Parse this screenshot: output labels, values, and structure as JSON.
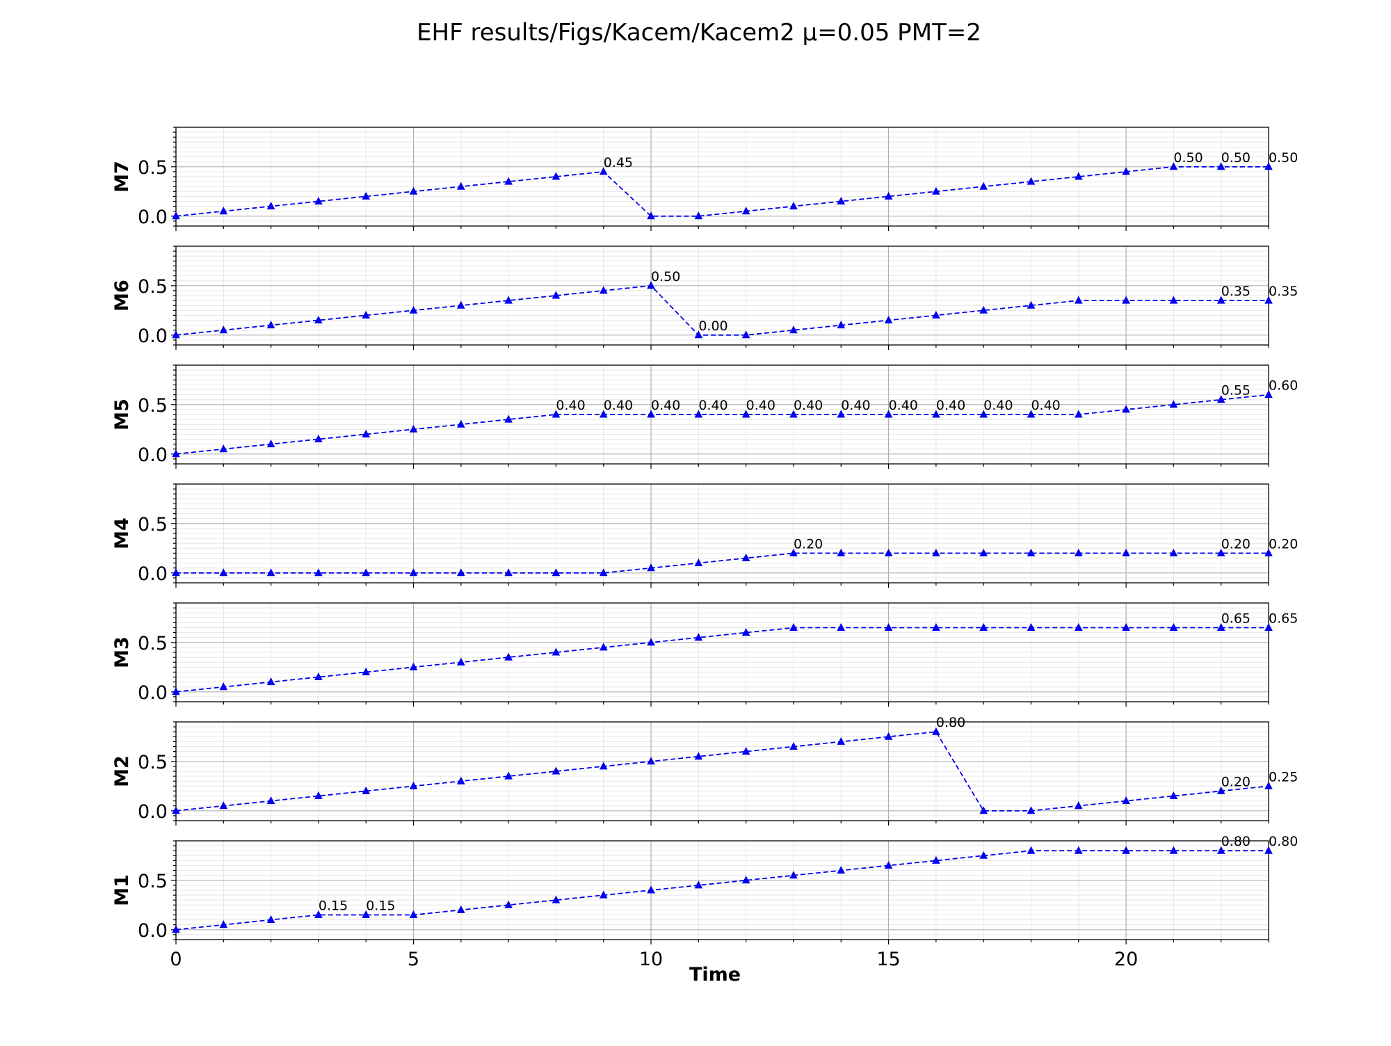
{
  "chart_data": {
    "type": "line",
    "title": "EHF results/Figs/Kacem/Kacem2 μ=0.05 PMT=2",
    "xlabel": "Time",
    "xlim": [
      0,
      23
    ],
    "ylim": [
      -0.1,
      0.9
    ],
    "x_ticks": [
      0,
      5,
      10,
      15,
      20
    ],
    "y_ticks": [
      0.0,
      0.5
    ],
    "grid": true,
    "line_style": "dashed",
    "marker": "triangle",
    "color": "#0000ee",
    "x": [
      0,
      1,
      2,
      3,
      4,
      5,
      6,
      7,
      8,
      9,
      10,
      11,
      12,
      13,
      14,
      15,
      16,
      17,
      18,
      19,
      20,
      21,
      22,
      23
    ],
    "series": [
      {
        "name": "M7",
        "values": [
          0,
          0.05,
          0.1,
          0.15,
          0.2,
          0.25,
          0.3,
          0.35,
          0.4,
          0.45,
          0,
          0,
          0.05,
          0.1,
          0.15,
          0.2,
          0.25,
          0.3,
          0.35,
          0.4,
          0.45,
          0.5,
          0.5,
          0.5
        ],
        "annotations": [
          {
            "x": 9,
            "y": 0.45,
            "text": "0.45"
          },
          {
            "x": 21,
            "y": 0.5,
            "text": "0.50"
          },
          {
            "x": 22,
            "y": 0.5,
            "text": "0.50"
          },
          {
            "x": 23,
            "y": 0.5,
            "text": "0.50"
          }
        ]
      },
      {
        "name": "M6",
        "values": [
          0,
          0.05,
          0.1,
          0.15,
          0.2,
          0.25,
          0.3,
          0.35,
          0.4,
          0.45,
          0.5,
          0,
          0,
          0.05,
          0.1,
          0.15,
          0.2,
          0.25,
          0.3,
          0.35,
          0.35,
          0.35,
          0.35,
          0.35
        ],
        "annotations": [
          {
            "x": 10,
            "y": 0.5,
            "text": "0.50"
          },
          {
            "x": 11,
            "y": 0,
            "text": "0.00"
          },
          {
            "x": 22,
            "y": 0.35,
            "text": "0.35"
          },
          {
            "x": 23,
            "y": 0.35,
            "text": "0.35"
          }
        ]
      },
      {
        "name": "M5",
        "values": [
          0,
          0.05,
          0.1,
          0.15,
          0.2,
          0.25,
          0.3,
          0.35,
          0.4,
          0.4,
          0.4,
          0.4,
          0.4,
          0.4,
          0.4,
          0.4,
          0.4,
          0.4,
          0.4,
          0.4,
          0.45,
          0.5,
          0.55,
          0.6
        ],
        "annotations": [
          {
            "x": 8,
            "y": 0.4,
            "text": "0.40"
          },
          {
            "x": 9,
            "y": 0.4,
            "text": "0.40"
          },
          {
            "x": 10,
            "y": 0.4,
            "text": "0.40"
          },
          {
            "x": 11,
            "y": 0.4,
            "text": "0.40"
          },
          {
            "x": 12,
            "y": 0.4,
            "text": "0.40"
          },
          {
            "x": 13,
            "y": 0.4,
            "text": "0.40"
          },
          {
            "x": 14,
            "y": 0.4,
            "text": "0.40"
          },
          {
            "x": 15,
            "y": 0.4,
            "text": "0.40"
          },
          {
            "x": 16,
            "y": 0.4,
            "text": "0.40"
          },
          {
            "x": 17,
            "y": 0.4,
            "text": "0.40"
          },
          {
            "x": 18,
            "y": 0.4,
            "text": "0.40"
          },
          {
            "x": 22,
            "y": 0.55,
            "text": "0.55"
          },
          {
            "x": 23,
            "y": 0.6,
            "text": "0.60"
          }
        ]
      },
      {
        "name": "M4",
        "values": [
          0,
          0,
          0,
          0,
          0,
          0,
          0,
          0,
          0,
          0,
          0.05,
          0.1,
          0.15,
          0.2,
          0.2,
          0.2,
          0.2,
          0.2,
          0.2,
          0.2,
          0.2,
          0.2,
          0.2,
          0.2
        ],
        "annotations": [
          {
            "x": 13,
            "y": 0.2,
            "text": "0.20"
          },
          {
            "x": 22,
            "y": 0.2,
            "text": "0.20"
          },
          {
            "x": 23,
            "y": 0.2,
            "text": "0.20"
          }
        ]
      },
      {
        "name": "M3",
        "values": [
          0,
          0.05,
          0.1,
          0.15,
          0.2,
          0.25,
          0.3,
          0.35,
          0.4,
          0.45,
          0.5,
          0.55,
          0.6,
          0.65,
          0.65,
          0.65,
          0.65,
          0.65,
          0.65,
          0.65,
          0.65,
          0.65,
          0.65,
          0.65
        ],
        "annotations": [
          {
            "x": 22,
            "y": 0.65,
            "text": "0.65"
          },
          {
            "x": 23,
            "y": 0.65,
            "text": "0.65"
          }
        ]
      },
      {
        "name": "M2",
        "values": [
          0,
          0.05,
          0.1,
          0.15,
          0.2,
          0.25,
          0.3,
          0.35,
          0.4,
          0.45,
          0.5,
          0.55,
          0.6,
          0.65,
          0.7,
          0.75,
          0.8,
          0,
          0,
          0.05,
          0.1,
          0.15,
          0.2,
          0.25
        ],
        "annotations": [
          {
            "x": 16,
            "y": 0.8,
            "text": "0.80"
          },
          {
            "x": 22,
            "y": 0.2,
            "text": "0.20"
          },
          {
            "x": 23,
            "y": 0.25,
            "text": "0.25"
          }
        ]
      },
      {
        "name": "M1",
        "values": [
          0,
          0.05,
          0.1,
          0.15,
          0.15,
          0.15,
          0.2,
          0.25,
          0.3,
          0.35,
          0.4,
          0.45,
          0.5,
          0.55,
          0.6,
          0.65,
          0.7,
          0.75,
          0.8,
          0.8,
          0.8,
          0.8,
          0.8,
          0.8
        ],
        "annotations": [
          {
            "x": 3,
            "y": 0.15,
            "text": "0.15"
          },
          {
            "x": 4,
            "y": 0.15,
            "text": "0.15"
          },
          {
            "x": 22,
            "y": 0.8,
            "text": "0.80"
          },
          {
            "x": 23,
            "y": 0.8,
            "text": "0.80"
          }
        ]
      }
    ]
  }
}
